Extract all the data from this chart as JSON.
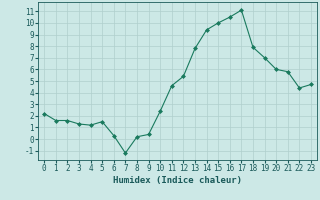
{
  "x": [
    0,
    1,
    2,
    3,
    4,
    5,
    6,
    7,
    8,
    9,
    10,
    11,
    12,
    13,
    14,
    15,
    16,
    17,
    18,
    19,
    20,
    21,
    22,
    23
  ],
  "y": [
    2.2,
    1.6,
    1.6,
    1.3,
    1.2,
    1.5,
    0.3,
    -1.2,
    0.2,
    0.4,
    2.4,
    4.6,
    5.4,
    7.8,
    9.4,
    10.0,
    10.5,
    11.1,
    7.9,
    7.0,
    6.0,
    5.8,
    4.4,
    4.7
  ],
  "line_color": "#1a7a5e",
  "marker": "D",
  "marker_size": 2.0,
  "bg_color": "#cce8e6",
  "grid_color": "#b0cfcd",
  "xlabel": "Humidex (Indice chaleur)",
  "xlabel_color": "#1a5a5a",
  "xlabel_fontsize": 6.5,
  "tick_color": "#1a5a5a",
  "tick_fontsize": 5.5,
  "ylim": [
    -1.8,
    11.8
  ],
  "xlim": [
    -0.5,
    23.5
  ],
  "yticks": [
    -1,
    0,
    1,
    2,
    3,
    4,
    5,
    6,
    7,
    8,
    9,
    10,
    11
  ],
  "xticks": [
    0,
    1,
    2,
    3,
    4,
    5,
    6,
    7,
    8,
    9,
    10,
    11,
    12,
    13,
    14,
    15,
    16,
    17,
    18,
    19,
    20,
    21,
    22,
    23
  ]
}
